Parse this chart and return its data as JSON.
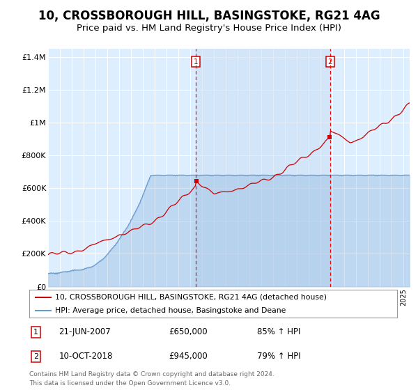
{
  "title": "10, CROSSBOROUGH HILL, BASINGSTOKE, RG21 4AG",
  "subtitle": "Price paid vs. HM Land Registry's House Price Index (HPI)",
  "red_label": "10, CROSSBOROUGH HILL, BASINGSTOKE, RG21 4AG (detached house)",
  "blue_label": "HPI: Average price, detached house, Basingstoke and Deane",
  "sale1_date": "21-JUN-2007",
  "sale1_price": "£650,000",
  "sale1_hpi": "85% ↑ HPI",
  "sale2_date": "10-OCT-2018",
  "sale2_price": "£945,000",
  "sale2_hpi": "79% ↑ HPI",
  "footer": "Contains HM Land Registry data © Crown copyright and database right 2024.\nThis data is licensed under the Open Government Licence v3.0.",
  "ylim": [
    0,
    1450000
  ],
  "xlim_start": 1995.0,
  "xlim_end": 2025.5,
  "vline1_x": 2007.47,
  "vline2_x": 2018.78,
  "background_color": "#ddeeff",
  "shade_color": "#cce0f5",
  "red_color": "#cc0000",
  "blue_color": "#6699cc",
  "title_fontsize": 12,
  "subtitle_fontsize": 9.5
}
